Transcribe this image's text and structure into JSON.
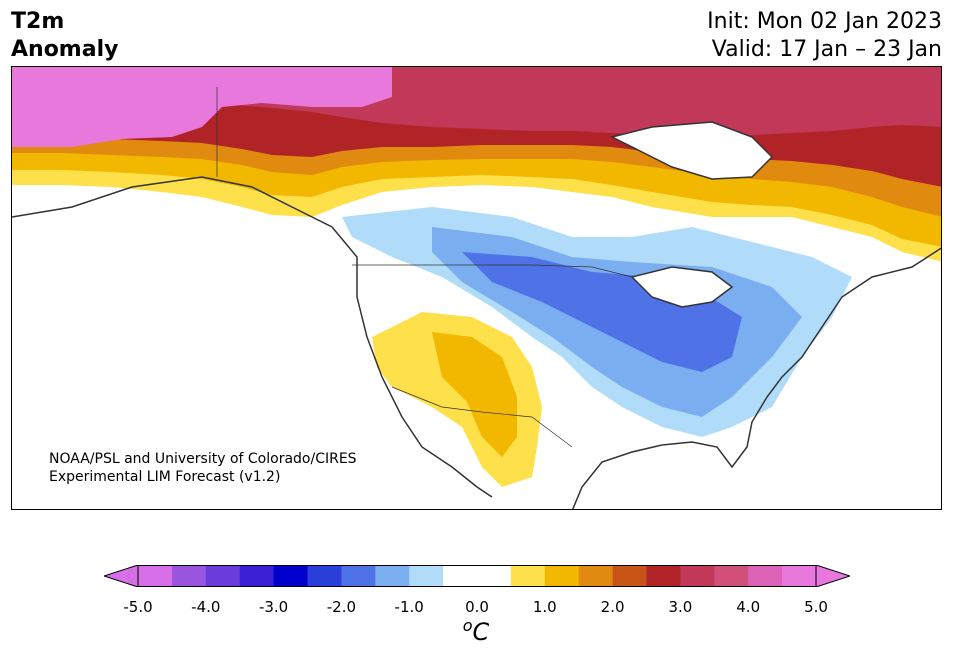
{
  "title": {
    "left_line1": "T2m",
    "left_line2": "Anomaly",
    "init": "Init: Mon 02 Jan 2023",
    "valid": "Valid: 17 Jan – 23 Jan"
  },
  "credit": {
    "line1": "NOAA/PSL and University of Colorado/CIRES",
    "line2": "Experimental LIM Forecast (v1.2)"
  },
  "colorbar": {
    "ticks": [
      "-5.0",
      "-4.0",
      "-3.0",
      "-2.0",
      "-1.0",
      "0.0",
      "1.0",
      "2.0",
      "3.0",
      "4.0",
      "5.0"
    ],
    "unit_base": "o",
    "unit_main": "C",
    "colors": [
      "#d770e8",
      "#9a55e0",
      "#6a3ddb",
      "#3a20d4",
      "#0000cc",
      "#2a3fd8",
      "#4f73e6",
      "#7aaef0",
      "#b0dcfa",
      "#ffffff",
      "#ffffff",
      "#fde04a",
      "#f2b800",
      "#e08a10",
      "#c85418",
      "#b02428",
      "#c23858",
      "#d0507a",
      "#dc62b8",
      "#e878dc"
    ],
    "extend_low_color": "#d770e8",
    "extend_high_color": "#e878dc"
  },
  "map": {
    "region": "North America",
    "colors": {
      "ocean": "#ffffff",
      "coast": "#333333"
    }
  }
}
